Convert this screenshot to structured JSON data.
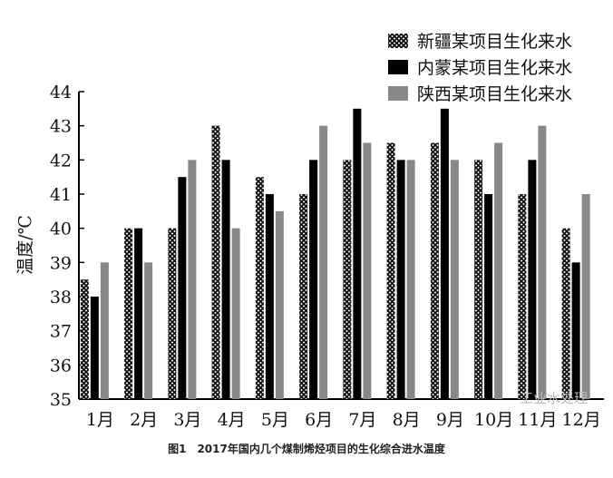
{
  "chart_data": {
    "type": "bar",
    "title": "",
    "caption": "图1　2017年国内几个煤制烯烃项目的生化综合进水温度",
    "ylabel": "温度/℃",
    "xlabel": "",
    "ylim": [
      35,
      44
    ],
    "yticks": [
      35,
      36,
      37,
      38,
      39,
      40,
      41,
      42,
      43,
      44
    ],
    "categories": [
      "1月",
      "2月",
      "3月",
      "4月",
      "5月",
      "6月",
      "7月",
      "8月",
      "9月",
      "10月",
      "11月",
      "12月"
    ],
    "legend_position": "top-right",
    "grid": false,
    "series": [
      {
        "name": "新疆某项目生化来水",
        "pattern": "crosshatch",
        "color": "#222222",
        "values": [
          38.5,
          40,
          40,
          43,
          41.5,
          41,
          42,
          42.5,
          42.5,
          42,
          41,
          40
        ]
      },
      {
        "name": "内蒙某项目生化来水",
        "color": "#000000",
        "values": [
          38,
          40,
          41.5,
          42,
          41,
          42,
          43.5,
          42,
          43.5,
          41,
          42,
          39
        ]
      },
      {
        "name": "陕西某项目生化来水",
        "color": "#888888",
        "values": [
          39,
          39,
          42,
          40,
          40.5,
          43,
          42.5,
          42,
          42,
          42.5,
          43,
          41
        ]
      }
    ]
  },
  "watermark": "工业水处理"
}
